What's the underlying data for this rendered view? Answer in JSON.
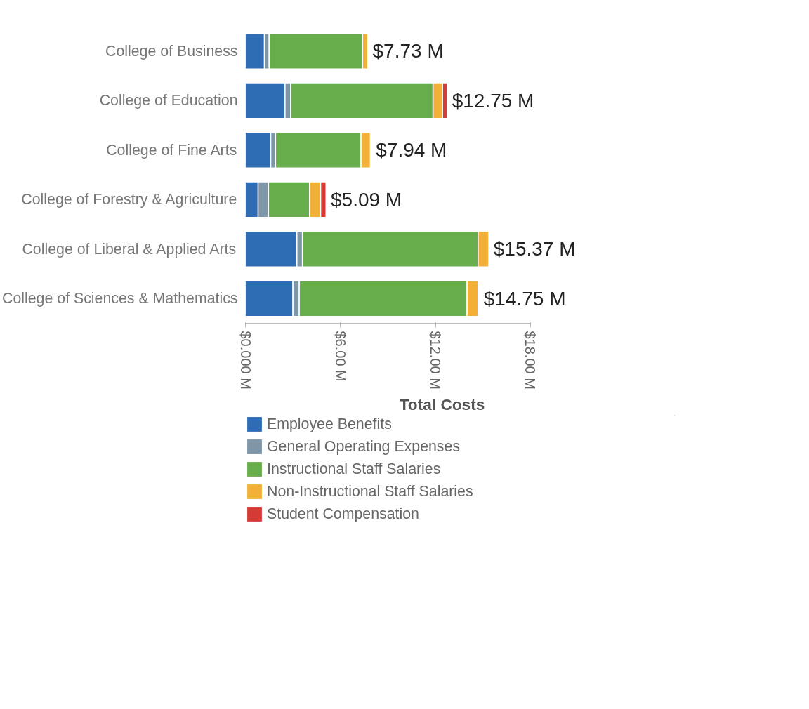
{
  "chart_data": {
    "type": "bar",
    "orientation": "horizontal",
    "stacked": true,
    "xlabel": "Total Costs",
    "categories": [
      "College of Business",
      "College of Education",
      "College of Fine Arts",
      "College of Forestry & Agriculture",
      "College of Liberal & Applied Arts",
      "College of Sciences & Mathematics"
    ],
    "series": [
      {
        "name": "Employee Benefits",
        "color": "#2e6db4",
        "values": [
          1.2,
          2.5,
          1.6,
          0.8,
          3.25,
          3.0
        ]
      },
      {
        "name": "General Operating Expenses",
        "color": "#7f95a8",
        "values": [
          0.3,
          0.35,
          0.3,
          0.65,
          0.35,
          0.4
        ]
      },
      {
        "name": "Instructional Staff Salaries",
        "color": "#67ad4b",
        "values": [
          5.9,
          9.0,
          5.4,
          2.6,
          11.1,
          10.6
        ]
      },
      {
        "name": "Non-Instructional Staff Salaries",
        "color": "#f2b038",
        "values": [
          0.33,
          0.6,
          0.6,
          0.7,
          0.67,
          0.7
        ]
      },
      {
        "name": "Student Compensation",
        "color": "#d63a35",
        "values": [
          0,
          0.3,
          0.04,
          0.34,
          0,
          0.05
        ]
      }
    ],
    "totals": [
      "$7.73 M",
      "$12.75 M",
      "$7.94 M",
      "$5.09 M",
      "$15.37 M",
      "$14.75 M"
    ],
    "xlim": [
      0,
      18
    ],
    "xticks": [
      {
        "value": 0,
        "label": "$0.000 M"
      },
      {
        "value": 6,
        "label": "$6.00 M"
      },
      {
        "value": 12,
        "label": "$12.00 M"
      },
      {
        "value": 18,
        "label": "$18.00 M"
      }
    ],
    "grid": false,
    "legend": "bottom"
  }
}
